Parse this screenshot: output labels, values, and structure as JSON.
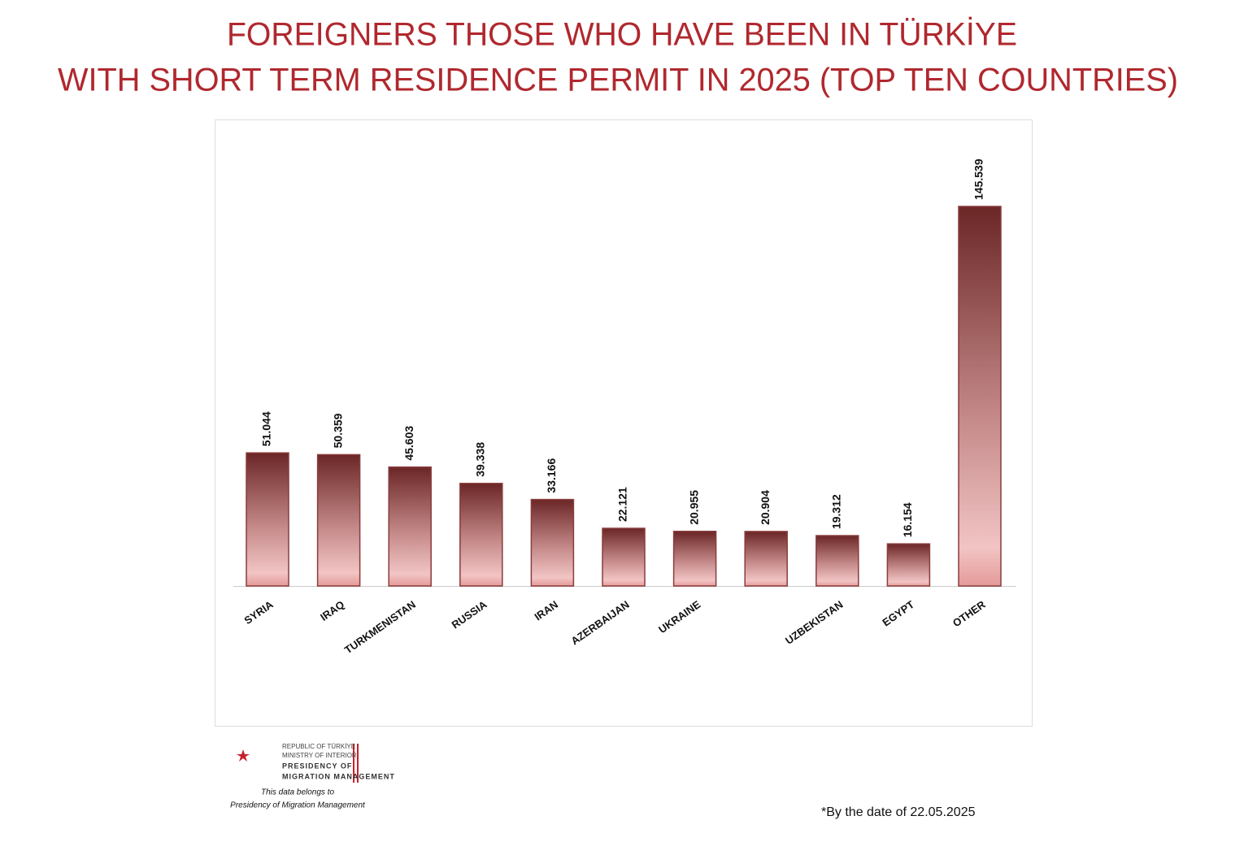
{
  "chart_data": {
    "type": "bar",
    "title": [
      "FOREIGNERS THOSE WHO HAVE BEEN IN TÜRKİYE",
      "WITH SHORT TERM RESIDENCE PERMIT IN 2025 (TOP TEN COUNTRIES)"
    ],
    "categories": [
      "SYRIA",
      "IRAQ",
      "TURKMENISTAN",
      "RUSSIA",
      "IRAN",
      "AZERBAIJAN",
      "UKRAINE",
      null,
      "UZBEKISTAN",
      "EGYPT",
      "OTHER"
    ],
    "values": [
      51044,
      50359,
      45603,
      39338,
      33166,
      22121,
      20955,
      20904,
      19312,
      16154,
      145539
    ],
    "value_labels": [
      "51.044",
      "50.359",
      "45.603",
      "39.338",
      "33.166",
      "22.121",
      "20.955",
      "20.904",
      "19.312",
      "16.154",
      "145.539"
    ],
    "color": "#8a3c3c"
  },
  "logo": {
    "line1": "REPUBLIC OF TÜRKİYE",
    "line2": "MINISTRY OF INTERIOR",
    "line3": "PRESIDENCY OF",
    "line4": "MIGRATION MANAGEMENT",
    "note1": "This data belongs to",
    "note2": "Presidency of Migration Management"
  },
  "footnote": "*By the date of 22.05.2025"
}
